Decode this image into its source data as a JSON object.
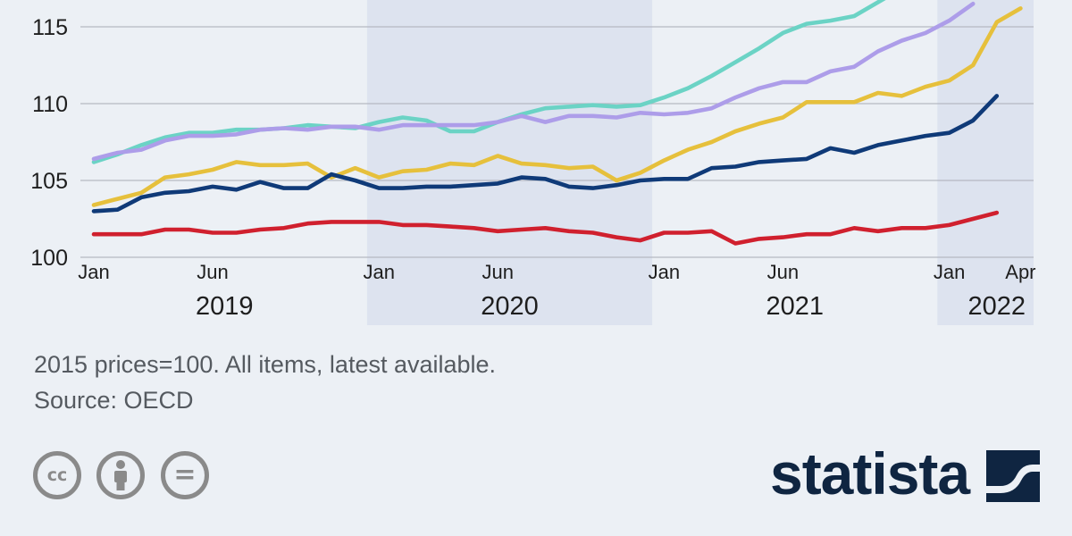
{
  "chart_data": {
    "type": "line",
    "title": "",
    "xlabel": "",
    "ylabel": "",
    "ylim": [
      100,
      117
    ],
    "y_ticks": [
      "100",
      "105",
      "110",
      "115"
    ],
    "x_tick_labels": [
      {
        "month_index": 0,
        "label": "Jan"
      },
      {
        "month_index": 5,
        "label": "Jun"
      },
      {
        "month_index": 12,
        "label": "Jan"
      },
      {
        "month_index": 17,
        "label": "Jun"
      },
      {
        "month_index": 24,
        "label": "Jan"
      },
      {
        "month_index": 29,
        "label": "Jun"
      },
      {
        "month_index": 36,
        "label": "Jan"
      },
      {
        "month_index": 39,
        "label": "Apr"
      }
    ],
    "years": [
      {
        "label": "2019",
        "shaded": false
      },
      {
        "label": "2020",
        "shaded": true
      },
      {
        "label": "2021",
        "shaded": false
      },
      {
        "label": "2022",
        "shaded": true
      }
    ],
    "x": [
      "2019-01",
      "2019-02",
      "2019-03",
      "2019-04",
      "2019-05",
      "2019-06",
      "2019-07",
      "2019-08",
      "2019-09",
      "2019-10",
      "2019-11",
      "2019-12",
      "2020-01",
      "2020-02",
      "2020-03",
      "2020-04",
      "2020-05",
      "2020-06",
      "2020-07",
      "2020-08",
      "2020-09",
      "2020-10",
      "2020-11",
      "2020-12",
      "2021-01",
      "2021-02",
      "2021-03",
      "2021-04",
      "2021-05",
      "2021-06",
      "2021-07",
      "2021-08",
      "2021-09",
      "2021-10",
      "2021-11",
      "2021-12",
      "2022-01",
      "2022-02",
      "2022-03",
      "2022-04"
    ],
    "series": [
      {
        "color": "#6bd3c5",
        "values": [
          106.2,
          106.7,
          107.3,
          107.8,
          108.1,
          108.1,
          108.3,
          108.3,
          108.4,
          108.6,
          108.5,
          108.4,
          108.8,
          109.1,
          108.9,
          108.2,
          108.2,
          108.8,
          109.3,
          109.7,
          109.8,
          109.9,
          109.8,
          109.9,
          110.4,
          111.0,
          111.8,
          112.7,
          113.6,
          114.6,
          115.2,
          115.4,
          115.7,
          116.6,
          117.5,
          null,
          null,
          null,
          null,
          null
        ]
      },
      {
        "color": "#ad9de9",
        "values": [
          106.4,
          106.8,
          107.0,
          107.6,
          107.9,
          107.9,
          108.0,
          108.3,
          108.4,
          108.3,
          108.5,
          108.5,
          108.3,
          108.6,
          108.6,
          108.6,
          108.6,
          108.8,
          109.2,
          108.8,
          109.2,
          109.2,
          109.1,
          109.4,
          109.3,
          109.4,
          109.7,
          110.4,
          111.0,
          111.4,
          111.4,
          112.1,
          112.4,
          113.4,
          114.1,
          114.6,
          115.4,
          116.5,
          null,
          null
        ]
      },
      {
        "color": "#e6c03c",
        "values": [
          103.4,
          103.8,
          104.2,
          105.2,
          105.4,
          105.7,
          106.2,
          106.0,
          106.0,
          106.1,
          105.2,
          105.8,
          105.2,
          105.6,
          105.7,
          106.1,
          106.0,
          106.6,
          106.1,
          106.0,
          105.8,
          105.9,
          105.0,
          105.5,
          106.3,
          107.0,
          107.5,
          108.2,
          108.7,
          109.1,
          110.1,
          110.1,
          110.1,
          110.7,
          110.5,
          111.1,
          111.5,
          112.5,
          115.3,
          116.2
        ]
      },
      {
        "color": "#0f3a78",
        "values": [
          103.0,
          103.1,
          103.9,
          104.2,
          104.3,
          104.6,
          104.4,
          104.9,
          104.5,
          104.5,
          105.4,
          105.0,
          104.5,
          104.5,
          104.6,
          104.6,
          104.7,
          104.8,
          105.2,
          105.1,
          104.6,
          104.5,
          104.7,
          105.0,
          105.1,
          105.1,
          105.8,
          105.9,
          106.2,
          106.3,
          106.4,
          107.1,
          106.8,
          107.3,
          107.6,
          107.9,
          108.1,
          108.9,
          110.5,
          null
        ]
      },
      {
        "color": "#d0202e",
        "values": [
          101.5,
          101.5,
          101.5,
          101.8,
          101.8,
          101.6,
          101.6,
          101.8,
          101.9,
          102.2,
          102.3,
          102.3,
          102.3,
          102.1,
          102.1,
          102.0,
          101.9,
          101.7,
          101.8,
          101.9,
          101.7,
          101.6,
          101.3,
          101.1,
          101.6,
          101.6,
          101.7,
          100.9,
          101.2,
          101.3,
          101.5,
          101.5,
          101.9,
          101.7,
          101.9,
          101.9,
          102.1,
          102.5,
          102.9,
          null
        ]
      }
    ]
  },
  "notes": {
    "line1": "2015 prices=100. All items, latest available.",
    "line2": "Source: OECD"
  },
  "license_icons": {
    "cc": "creative-commons-icon",
    "by": "attribution-icon",
    "nd": "no-derivatives-icon",
    "cc_text": "cc",
    "nd_text": "="
  },
  "brand": {
    "name": "statista",
    "color": "#0f2541",
    "background": "#ecf0f5",
    "shade": "#dde3ef",
    "grid": "#b5b9c2"
  }
}
